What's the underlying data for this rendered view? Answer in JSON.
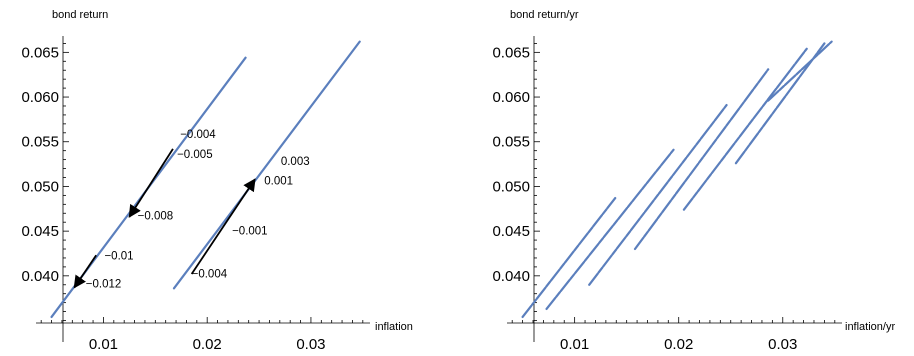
{
  "chart_data": [
    {
      "type": "line",
      "xlabel": "inflation",
      "ylabel": "bond return",
      "xlim": [
        0.0035,
        0.0355
      ],
      "ylim": [
        0.0345,
        0.0675
      ],
      "x_ticks": [
        0.01,
        0.02,
        0.03
      ],
      "x_tick_labels": [
        "0.01",
        "0.02",
        "0.03"
      ],
      "y_ticks": [
        0.04,
        0.045,
        0.05,
        0.055,
        0.06,
        0.065
      ],
      "y_tick_labels": [
        "0.040",
        "0.045",
        "0.050",
        "0.055",
        "0.060",
        "0.065"
      ],
      "series": [
        {
          "x": [
            0.005,
            0.0237
          ],
          "y": [
            0.0354,
            0.0644
          ]
        },
        {
          "x": [
            0.0168,
            0.0347
          ],
          "y": [
            0.0386,
            0.0662
          ]
        }
      ],
      "arrows": [
        {
          "from": [
            0.0167,
            0.0542
          ],
          "to": [
            0.0125,
            0.0466
          ]
        },
        {
          "from": [
            0.0093,
            0.0423
          ],
          "to": [
            0.0072,
            0.0387
          ]
        },
        {
          "from": [
            0.0185,
            0.0402
          ],
          "to": [
            0.0246,
            0.0508
          ]
        }
      ],
      "annotations": [
        {
          "text": "−0.004",
          "x": 0.0174,
          "y": 0.0554
        },
        {
          "text": "−0.005",
          "x": 0.0171,
          "y": 0.0532
        },
        {
          "text": "−0.008",
          "x": 0.0133,
          "y": 0.0463
        },
        {
          "text": "−0.01",
          "x": 0.0101,
          "y": 0.0418
        },
        {
          "text": "−0.012",
          "x": 0.0083,
          "y": 0.0387
        },
        {
          "text": "−0.001",
          "x": 0.0224,
          "y": 0.0446
        },
        {
          "text": "−0.004",
          "x": 0.0185,
          "y": 0.0398
        },
        {
          "text": "0.003",
          "x": 0.0271,
          "y": 0.0524
        },
        {
          "text": "0.001",
          "x": 0.0255,
          "y": 0.0502
        }
      ]
    },
    {
      "type": "line",
      "xlabel": "inflation/yr",
      "ylabel": "bond return/yr",
      "xlim": [
        0.0035,
        0.0355
      ],
      "ylim": [
        0.0345,
        0.0675
      ],
      "x_ticks": [
        0.01,
        0.02,
        0.03
      ],
      "x_tick_labels": [
        "0.01",
        "0.02",
        "0.03"
      ],
      "y_ticks": [
        0.04,
        0.045,
        0.05,
        0.055,
        0.06,
        0.065
      ],
      "y_tick_labels": [
        "0.040",
        "0.045",
        "0.050",
        "0.055",
        "0.060",
        "0.065"
      ],
      "series": [
        {
          "x": [
            0.005,
            0.0139
          ],
          "y": [
            0.0354,
            0.0487
          ]
        },
        {
          "x": [
            0.0073,
            0.0195
          ],
          "y": [
            0.0363,
            0.0541
          ]
        },
        {
          "x": [
            0.0114,
            0.0246
          ],
          "y": [
            0.039,
            0.0591
          ]
        },
        {
          "x": [
            0.0158,
            0.0286
          ],
          "y": [
            0.043,
            0.0631
          ]
        },
        {
          "x": [
            0.0205,
            0.0323
          ],
          "y": [
            0.0474,
            0.0654
          ]
        },
        {
          "x": [
            0.0255,
            0.034
          ],
          "y": [
            0.0526,
            0.066
          ]
        },
        {
          "x": [
            0.0286,
            0.0347
          ],
          "y": [
            0.0596,
            0.0662
          ]
        }
      ]
    }
  ]
}
